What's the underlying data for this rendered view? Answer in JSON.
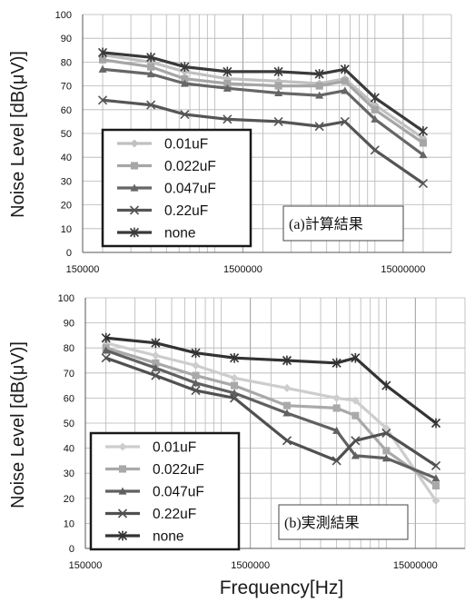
{
  "shared_xlabel": "Frequency[Hz]",
  "chart_data": [
    {
      "type": "line",
      "caption": "(a)計算結果",
      "ylabel": "Noise Level [dB(μV)]",
      "ylim": [
        0,
        100
      ],
      "y_ticks": [
        0,
        10,
        20,
        30,
        40,
        50,
        60,
        70,
        80,
        90,
        100
      ],
      "x_scale": "log",
      "x_ticks": [
        150000,
        1500000,
        15000000
      ],
      "x_tick_labels": [
        "150000",
        "1500000",
        "15000000"
      ],
      "grid": true,
      "legend_position": "bottom-left",
      "series": [
        {
          "name": "0.01uF",
          "color": "#c0c0c0",
          "marker": "diamond",
          "x": [
            200000,
            400000,
            650000,
            1200000,
            2500000,
            4500000,
            6500000,
            10000000,
            20000000
          ],
          "y": [
            83,
            80,
            76,
            73,
            72,
            71,
            73,
            62,
            48
          ]
        },
        {
          "name": "0.022uF",
          "color": "#a6a6a6",
          "marker": "square",
          "x": [
            200000,
            400000,
            650000,
            1200000,
            2500000,
            4500000,
            6500000,
            10000000,
            20000000
          ],
          "y": [
            81,
            78,
            73,
            71,
            70,
            70,
            72,
            60,
            46
          ]
        },
        {
          "name": "0.047uF",
          "color": "#666666",
          "marker": "triangle",
          "x": [
            200000,
            400000,
            650000,
            1200000,
            2500000,
            4500000,
            6500000,
            10000000,
            20000000
          ],
          "y": [
            77,
            75,
            71,
            69,
            67,
            66,
            68,
            56,
            41
          ]
        },
        {
          "name": "0.22uF",
          "color": "#555555",
          "marker": "x",
          "x": [
            200000,
            400000,
            650000,
            1200000,
            2500000,
            4500000,
            6500000,
            10000000,
            20000000
          ],
          "y": [
            64,
            62,
            58,
            56,
            55,
            53,
            55,
            43,
            29
          ]
        },
        {
          "name": "none",
          "color": "#3a3a3a",
          "marker": "star",
          "x": [
            200000,
            400000,
            650000,
            1200000,
            2500000,
            4500000,
            6500000,
            10000000,
            20000000
          ],
          "y": [
            84,
            82,
            78,
            76,
            76,
            75,
            77,
            65,
            51
          ]
        }
      ]
    },
    {
      "type": "line",
      "caption": "(b)実測結果",
      "ylabel": "Noise Level [dB(μV)]",
      "ylim": [
        0,
        100
      ],
      "y_ticks": [
        0,
        10,
        20,
        30,
        40,
        50,
        60,
        70,
        80,
        90,
        100
      ],
      "x_scale": "log",
      "x_ticks": [
        150000,
        1500000,
        15000000
      ],
      "x_tick_labels": [
        "150000",
        "1500000",
        "15000000"
      ],
      "grid": true,
      "legend_position": "bottom-left",
      "series": [
        {
          "name": "0.01uF",
          "color": "#cdcdcd",
          "marker": "diamond",
          "x": [
            200000,
            400000,
            700000,
            1200000,
            2500000,
            5000000,
            6500000,
            10000000,
            20000000
          ],
          "y": [
            82,
            77,
            73,
            68,
            64,
            60,
            59,
            48,
            19
          ]
        },
        {
          "name": "0.022uF",
          "color": "#a9a9a9",
          "marker": "square",
          "x": [
            200000,
            400000,
            700000,
            1200000,
            2500000,
            5000000,
            6500000,
            10000000,
            20000000
          ],
          "y": [
            80,
            74,
            69,
            65,
            57,
            56,
            53,
            39,
            25
          ]
        },
        {
          "name": "0.047uF",
          "color": "#606060",
          "marker": "triangle",
          "x": [
            200000,
            400000,
            700000,
            1200000,
            2500000,
            5000000,
            6500000,
            10000000,
            20000000
          ],
          "y": [
            79,
            72,
            66,
            62,
            54,
            47,
            37,
            36,
            28
          ]
        },
        {
          "name": "0.22uF",
          "color": "#505050",
          "marker": "x",
          "x": [
            200000,
            400000,
            700000,
            1200000,
            2500000,
            5000000,
            6500000,
            10000000,
            20000000
          ],
          "y": [
            76,
            69,
            63,
            60,
            43,
            35,
            43,
            46,
            33
          ]
        },
        {
          "name": "none",
          "color": "#333333",
          "marker": "star",
          "x": [
            200000,
            400000,
            700000,
            1200000,
            2500000,
            5000000,
            6500000,
            10000000,
            20000000
          ],
          "y": [
            84,
            82,
            78,
            76,
            75,
            74,
            76,
            65,
            50
          ]
        }
      ]
    }
  ]
}
